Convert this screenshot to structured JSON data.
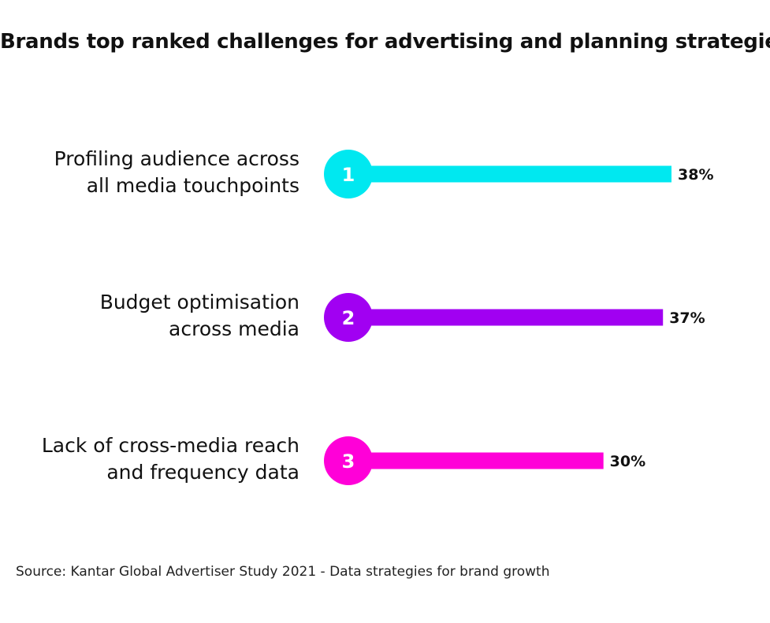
{
  "chart_data": {
    "type": "bar",
    "title": "Brands top ranked challenges for advertising and planning strategies",
    "categories": [
      [
        "Profiling audience across",
        "all media touchpoints"
      ],
      [
        "Budget optimisation",
        "across media"
      ],
      [
        "Lack of cross-media reach",
        "and frequency data"
      ]
    ],
    "ranks": [
      "1",
      "2",
      "3"
    ],
    "values": [
      38,
      37,
      30
    ],
    "value_labels": [
      "38%",
      "37%",
      "30%"
    ],
    "colors": [
      "#00e8f0",
      "#a100f2",
      "#ff00d8"
    ],
    "xlim": [
      0,
      38
    ],
    "grid": false
  },
  "source": "Source: Kantar Global Advertiser Study 2021 - Data strategies for brand growth"
}
